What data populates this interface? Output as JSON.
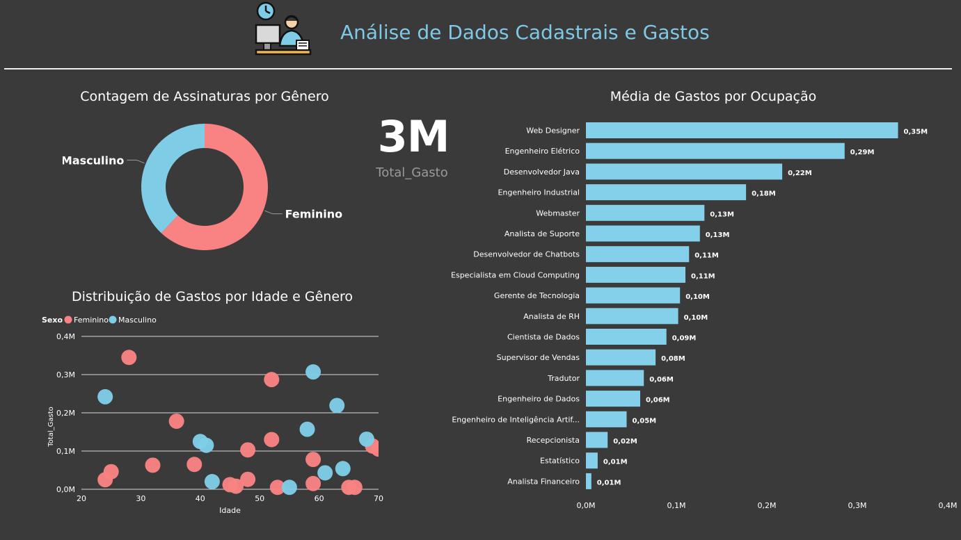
{
  "header": {
    "title": "Análise de Dados Cadastrais e Gastos",
    "icon": "office-worker-computer-icon"
  },
  "colors": {
    "feminino": "#f98282",
    "masculino": "#7fcce6",
    "bar": "#84cfea",
    "background": "#3a3a3a",
    "title": "#7fc8e6"
  },
  "kpi": {
    "value": "3M",
    "label": "Total_Gasto"
  },
  "chart_data": [
    {
      "type": "pie",
      "title": "Contagem de Assinaturas por Gênero",
      "donut": true,
      "slices": [
        {
          "name": "Feminino",
          "value": 62
        },
        {
          "name": "Masculino",
          "value": 38
        }
      ]
    },
    {
      "type": "scatter",
      "title": "Distribuição de Gastos por Idade e Gênero",
      "xlabel": "Idade",
      "ylabel": "Total_Gasto",
      "legend_title": "Sexo",
      "legend_position": "top-left",
      "xlim": [
        20,
        70
      ],
      "ylim": [
        0,
        0.4
      ],
      "xticks": [
        "20",
        "30",
        "40",
        "50",
        "60",
        "70"
      ],
      "yticks": [
        "0,0M",
        "0,1M",
        "0,2M",
        "0,3M",
        "0,4M"
      ],
      "grid": true,
      "series": [
        {
          "name": "Feminino",
          "points": [
            [
              28,
              0.345
            ],
            [
              52,
              0.287
            ],
            [
              36,
              0.178
            ],
            [
              52,
              0.13
            ],
            [
              48,
              0.103
            ],
            [
              59,
              0.078
            ],
            [
              32,
              0.063
            ],
            [
              39,
              0.065
            ],
            [
              25,
              0.046
            ],
            [
              24,
              0.025
            ],
            [
              48,
              0.026
            ],
            [
              45,
              0.012
            ],
            [
              46,
              0.008
            ],
            [
              53,
              0.005
            ],
            [
              59,
              0.015
            ],
            [
              65,
              0.005
            ],
            [
              66,
              0.005
            ],
            [
              69,
              0.113
            ],
            [
              70,
              0.105
            ]
          ]
        },
        {
          "name": "Masculino",
          "points": [
            [
              24,
              0.242
            ],
            [
              59,
              0.307
            ],
            [
              63,
              0.219
            ],
            [
              58,
              0.157
            ],
            [
              68,
              0.131
            ],
            [
              40,
              0.125
            ],
            [
              41,
              0.115
            ],
            [
              64,
              0.054
            ],
            [
              61,
              0.043
            ],
            [
              42,
              0.02
            ],
            [
              55,
              0.005
            ]
          ]
        }
      ]
    },
    {
      "type": "bar",
      "orientation": "horizontal",
      "title": "Média de Gastos por Ocupação",
      "xlim": [
        0,
        0.4
      ],
      "xticks": [
        "0,0M",
        "0,1M",
        "0,2M",
        "0,3M",
        "0,4M"
      ],
      "categories": [
        "Web Designer",
        "Engenheiro Elétrico",
        "Desenvolvedor Java",
        "Engenheiro Industrial",
        "Webmaster",
        "Analista de Suporte",
        "Desenvolvedor de Chatbots",
        "Especialista em Cloud Computing",
        "Gerente de Tecnologia",
        "Analista de RH",
        "Cientista de Dados",
        "Supervisor de Vendas",
        "Tradutor",
        "Engenheiro de Dados",
        "Engenheiro de Inteligência Artif...",
        "Recepcionista",
        "Estatístico",
        "Analista Financeiro"
      ],
      "values": [
        0.345,
        0.286,
        0.217,
        0.177,
        0.131,
        0.126,
        0.114,
        0.11,
        0.104,
        0.102,
        0.089,
        0.077,
        0.064,
        0.06,
        0.045,
        0.024,
        0.013,
        0.006
      ],
      "data_labels": [
        "0,35M",
        "0,29M",
        "0,22M",
        "0,18M",
        "0,13M",
        "0,13M",
        "0,11M",
        "0,11M",
        "0,10M",
        "0,10M",
        "0,09M",
        "0,08M",
        "0,06M",
        "0,06M",
        "0,05M",
        "0,02M",
        "0,01M",
        "0,01M"
      ]
    }
  ]
}
